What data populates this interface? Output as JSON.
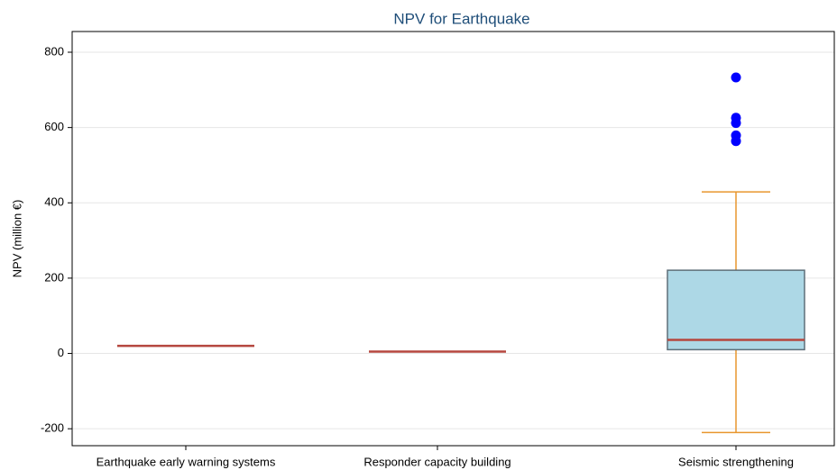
{
  "chart_data": {
    "type": "box",
    "title": "NPV for Earthquake",
    "y_label": "NPV (million €)",
    "categories": [
      "Earthquake early warning systems",
      "Responder capacity building",
      "Seismic strengthening"
    ],
    "whisker_low": [
      20,
      5,
      -210
    ],
    "q1": [
      20,
      5,
      10
    ],
    "median": [
      20,
      5,
      36
    ],
    "q3": [
      20,
      5,
      221
    ],
    "whisker_high": [
      20,
      5,
      429
    ],
    "outliers": [
      [],
      [],
      [
        733,
        626,
        612,
        579,
        564
      ]
    ],
    "ylim": [
      -245,
      855
    ],
    "yticks": [
      -200,
      0,
      200,
      400,
      600,
      800
    ],
    "grid": true,
    "box_color": "#add8e6",
    "box_edge_color": "#5f6f78",
    "median_color": "#b5473f",
    "whisker_color": "#e8962e",
    "outlier_color": "#0000ff"
  }
}
